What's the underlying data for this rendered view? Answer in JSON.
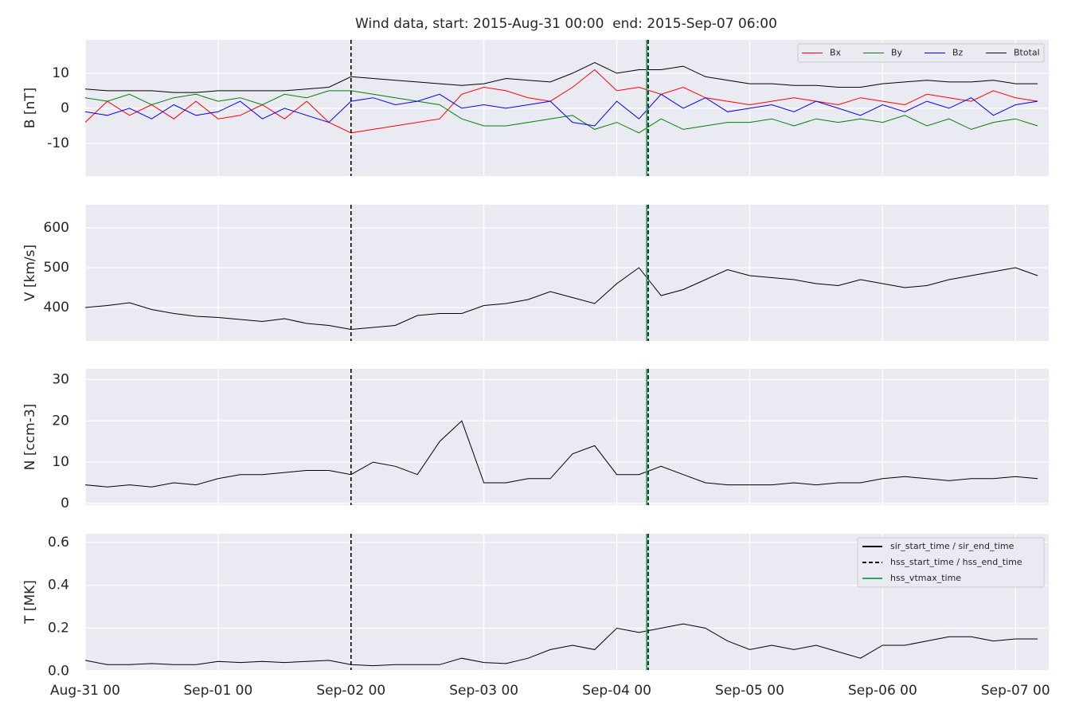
{
  "title": "Wind data, start: 2015-Aug-31 00:00  end: 2015-Sep-07 06:00",
  "x": [
    "2015-08-31T00:00",
    "2015-08-31T04:00",
    "2015-08-31T08:00",
    "2015-08-31T12:00",
    "2015-08-31T16:00",
    "2015-08-31T20:00",
    "2015-09-01T00:00",
    "2015-09-01T04:00",
    "2015-09-01T08:00",
    "2015-09-01T12:00",
    "2015-09-01T16:00",
    "2015-09-01T20:00",
    "2015-09-02T00:00",
    "2015-09-02T04:00",
    "2015-09-02T08:00",
    "2015-09-02T12:00",
    "2015-09-02T16:00",
    "2015-09-02T20:00",
    "2015-09-03T00:00",
    "2015-09-03T04:00",
    "2015-09-03T08:00",
    "2015-09-03T12:00",
    "2015-09-03T16:00",
    "2015-09-03T20:00",
    "2015-09-04T00:00",
    "2015-09-04T04:00",
    "2015-09-04T08:00",
    "2015-09-04T12:00",
    "2015-09-04T16:00",
    "2015-09-04T20:00",
    "2015-09-05T00:00",
    "2015-09-05T04:00",
    "2015-09-05T08:00",
    "2015-09-05T12:00",
    "2015-09-05T16:00",
    "2015-09-05T20:00",
    "2015-09-06T00:00",
    "2015-09-06T04:00",
    "2015-09-06T08:00",
    "2015-09-06T12:00",
    "2015-09-06T16:00",
    "2015-09-06T20:00",
    "2015-09-07T00:00",
    "2015-09-07T04:00"
  ],
  "xlim": [
    "2015-08-31T00:00",
    "2015-09-07T06:00"
  ],
  "xticks": [
    {
      "value": "2015-08-31T00:00",
      "label": "Aug-31 00"
    },
    {
      "value": "2015-09-01T00:00",
      "label": "Sep-01 00"
    },
    {
      "value": "2015-09-02T00:00",
      "label": "Sep-02 00"
    },
    {
      "value": "2015-09-03T00:00",
      "label": "Sep-03 00"
    },
    {
      "value": "2015-09-04T00:00",
      "label": "Sep-04 00"
    },
    {
      "value": "2015-09-05T00:00",
      "label": "Sep-05 00"
    },
    {
      "value": "2015-09-06T00:00",
      "label": "Sep-06 00"
    },
    {
      "value": "2015-09-07T00:00",
      "label": "Sep-07 00"
    }
  ],
  "vlines": [
    {
      "name": "sir_start_time / sir_end_time",
      "color": "#000000",
      "style": "solid",
      "x": []
    },
    {
      "name": "hss_start_time / hss_end_time",
      "color": "#000000",
      "style": "dashed",
      "x": [
        "2015-09-02T00:00",
        "2015-09-04T05:40"
      ]
    },
    {
      "name": "hss_vtmax_time",
      "color": "#2ca55f",
      "style": "solid",
      "x": [
        "2015-09-04T05:25"
      ]
    }
  ],
  "vlines_legend": "upper right",
  "chart_data": [
    {
      "type": "line",
      "ylabel": "B [nT]",
      "ylim": [
        -19.3,
        19.5
      ],
      "yticks": [
        -10,
        0,
        10
      ],
      "grid": true,
      "legend": "upper right",
      "series": [
        {
          "name": "Bx",
          "color": "#ff0000",
          "values": [
            -4,
            2,
            -2,
            1,
            -3,
            2,
            -3,
            -2,
            1,
            -3,
            2,
            -4,
            -7,
            -6,
            -5,
            -4,
            -3,
            4,
            6,
            5,
            3,
            2,
            6,
            11,
            5,
            6,
            4,
            6,
            3,
            2,
            1,
            2,
            3,
            2,
            1,
            3,
            2,
            1,
            4,
            3,
            2,
            5,
            3,
            2
          ]
        },
        {
          "name": "By",
          "color": "#008000",
          "values": [
            3,
            2,
            4,
            1,
            3,
            4,
            2,
            3,
            1,
            4,
            3,
            5,
            5,
            4,
            3,
            2,
            1,
            -3,
            -5,
            -5,
            -4,
            -3,
            -2,
            -6,
            -4,
            -7,
            -3,
            -6,
            -5,
            -4,
            -4,
            -3,
            -5,
            -3,
            -4,
            -3,
            -4,
            -2,
            -5,
            -3,
            -6,
            -4,
            -3,
            -5
          ]
        },
        {
          "name": "Bz",
          "color": "#0000ff",
          "values": [
            -1,
            -2,
            0,
            -3,
            1,
            -2,
            -1,
            2,
            -3,
            0,
            -2,
            -4,
            2,
            3,
            1,
            2,
            4,
            0,
            1,
            0,
            1,
            2,
            -4,
            -5,
            2,
            -3,
            4,
            0,
            3,
            -1,
            0,
            1,
            -1,
            2,
            0,
            -2,
            1,
            -1,
            2,
            0,
            3,
            -2,
            1,
            2
          ]
        },
        {
          "name": "Btotal",
          "color": "#000000",
          "values": [
            5.5,
            5,
            5,
            5,
            4.5,
            4.5,
            5,
            5,
            5,
            5,
            5.5,
            6,
            9,
            8.5,
            8,
            7.5,
            7,
            6.5,
            7,
            8.5,
            8,
            7.5,
            10,
            13,
            10,
            11,
            11,
            12,
            9,
            8,
            7,
            7,
            6.5,
            6.5,
            6,
            6,
            7,
            7.5,
            8,
            7.5,
            7.5,
            8,
            7,
            7
          ]
        }
      ]
    },
    {
      "type": "line",
      "ylabel": "V [km/s]",
      "ylim": [
        316,
        658
      ],
      "yticks": [
        400,
        500,
        600
      ],
      "grid": true,
      "series": [
        {
          "color": "#000000",
          "values": [
            400,
            405,
            412,
            395,
            385,
            378,
            375,
            370,
            365,
            372,
            360,
            355,
            345,
            350,
            355,
            380,
            385,
            385,
            405,
            410,
            420,
            440,
            425,
            410,
            460,
            500,
            430,
            445,
            470,
            495,
            480,
            475,
            470,
            460,
            455,
            470,
            460,
            450,
            455,
            470,
            480,
            490,
            500,
            480
          ]
        }
      ]
    },
    {
      "type": "line",
      "ylabel": "N [ccm-3]",
      "ylim": [
        -0.4,
        32.6
      ],
      "yticks": [
        0,
        10,
        20,
        30
      ],
      "grid": true,
      "series": [
        {
          "color": "#000000",
          "values": [
            4.5,
            4,
            4.5,
            4,
            5,
            4.5,
            6,
            7,
            7,
            7.5,
            8,
            8,
            7,
            10,
            9,
            7,
            15,
            20,
            5,
            5,
            6,
            6,
            12,
            14,
            7,
            7,
            9,
            7,
            5,
            4.5,
            4.5,
            4.5,
            5,
            4.5,
            5,
            5,
            6,
            6.5,
            6,
            5.5,
            6,
            6,
            6.5,
            6
          ]
        }
      ]
    },
    {
      "type": "line",
      "ylabel": "T [MK]",
      "ylim": [
        0.005,
        0.64
      ],
      "yticks": [
        {
          "value": 0,
          "label": "0.0"
        },
        {
          "value": 0.2,
          "label": "0.2"
        },
        {
          "value": 0.4,
          "label": "0.4"
        },
        {
          "value": 0.6,
          "label": "0.6"
        }
      ],
      "grid": true,
      "series": [
        {
          "color": "#000000",
          "values": [
            0.05,
            0.03,
            0.03,
            0.035,
            0.03,
            0.03,
            0.045,
            0.04,
            0.045,
            0.04,
            0.045,
            0.05,
            0.03,
            0.025,
            0.03,
            0.03,
            0.03,
            0.06,
            0.04,
            0.035,
            0.06,
            0.1,
            0.12,
            0.1,
            0.2,
            0.18,
            0.2,
            0.22,
            0.2,
            0.14,
            0.1,
            0.12,
            0.1,
            0.12,
            0.09,
            0.06,
            0.12,
            0.12,
            0.14,
            0.16,
            0.16,
            0.14,
            0.15,
            0.15
          ]
        }
      ]
    }
  ]
}
